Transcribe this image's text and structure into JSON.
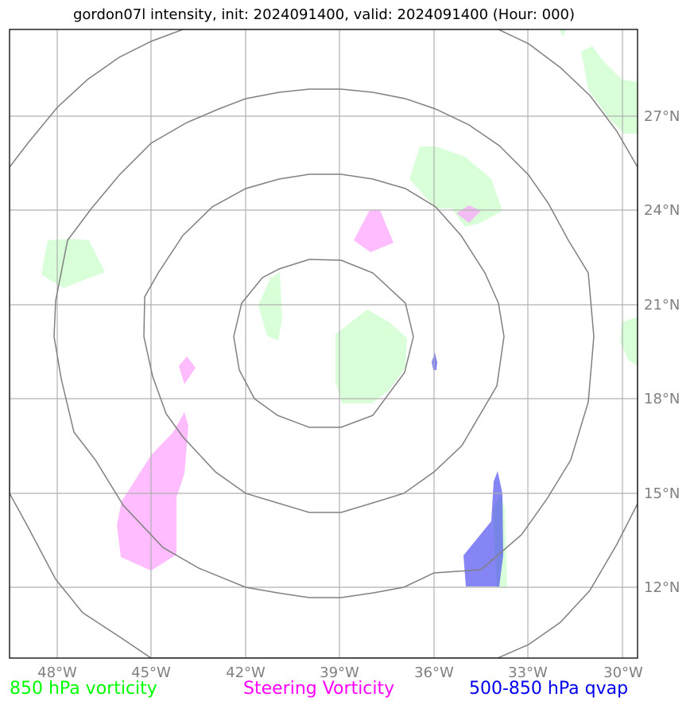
{
  "title": "gordon07l intensity, init: 2024091400, valid: 2024091400 (Hour: 000)",
  "map": {
    "lon_ticks": [
      "48°W",
      "45°W",
      "42°W",
      "39°W",
      "36°W",
      "33°W",
      "30°W"
    ],
    "lat_ticks": [
      "27°N",
      "24°N",
      "21°N",
      "18°N",
      "15°N",
      "12°N"
    ],
    "extent": {
      "lon_min": -49.5,
      "lon_max": -29.5,
      "lat_min": 9.8,
      "lat_max": 29.8
    },
    "center": {
      "lon": -39.0,
      "lat": 19.8
    },
    "range_rings_deg": [
      3,
      6,
      9,
      12
    ],
    "colors": {
      "vort850": "#ccffcc",
      "steering": "#ff99ff",
      "qvap": "#3333ee",
      "grid": "#b0b0b0",
      "rings": "#808080"
    }
  },
  "legend": {
    "vort850": "850 hPa vorticity",
    "steering": "Steering Vorticity",
    "qvap": "500-850 hPa qvap"
  }
}
